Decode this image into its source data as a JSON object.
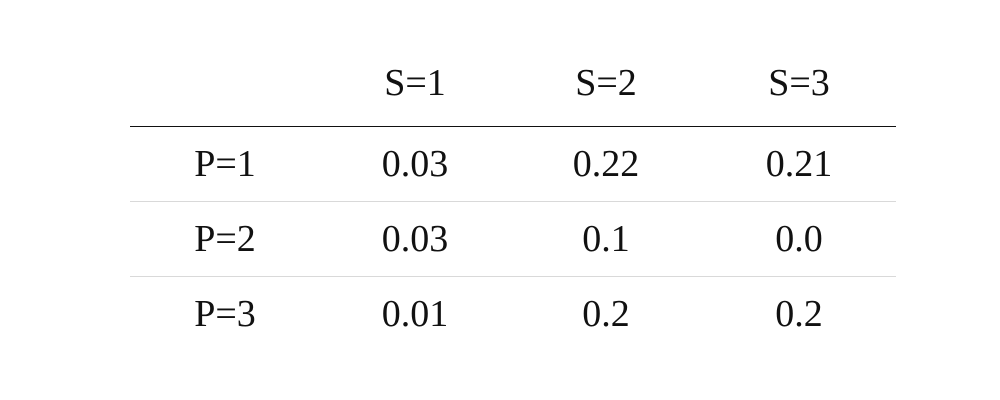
{
  "table": {
    "columns": [
      "",
      "S=1",
      "S=2",
      "S=3"
    ],
    "rows": [
      {
        "label": "P=1",
        "values": [
          "0.03",
          "0.22",
          "0.21"
        ]
      },
      {
        "label": "P=2",
        "values": [
          "0.03",
          "0.1",
          "0.0"
        ]
      },
      {
        "label": "P=3",
        "values": [
          "0.01",
          "0.2",
          "0.2"
        ]
      }
    ]
  }
}
